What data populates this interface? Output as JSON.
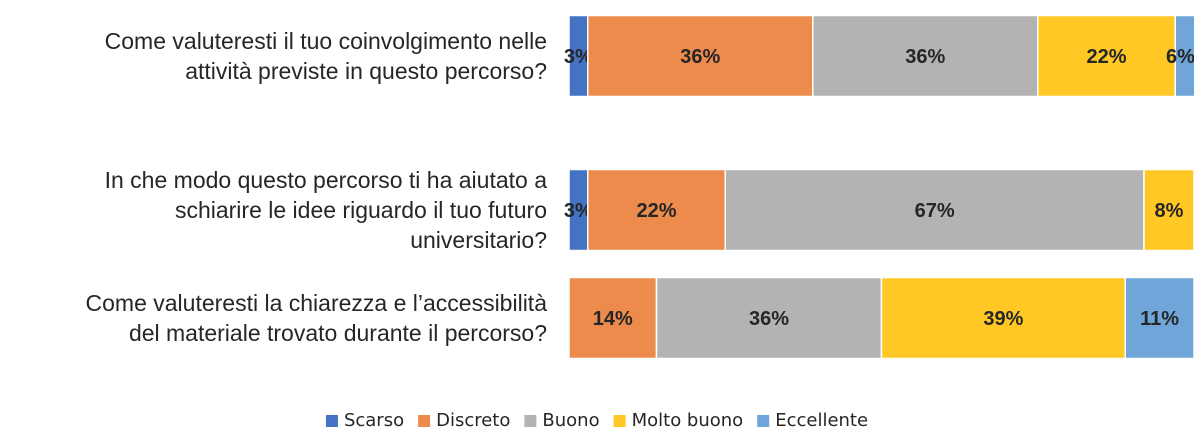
{
  "chart_data": {
    "type": "bar",
    "orientation": "horizontal",
    "stacked": true,
    "percent": true,
    "title": "",
    "xlabel": "",
    "ylabel": "",
    "xlim": [
      0,
      100
    ],
    "grid": false,
    "legend_position": "bottom",
    "categories": [
      "Come valuteresti il tuo coinvolgimento nelle attività previste in questo percorso?",
      "In che modo questo percorso ti ha aiutato a schiarire le idee riguardo il tuo futuro universitario?",
      "Come valuteresti la chiarezza e l’accessibilità del materiale trovato durante il percorso?"
    ],
    "category_lines": [
      [
        "Come valuteresti il tuo coinvolgimento nelle",
        "attività previste in questo percorso?"
      ],
      [
        "In che modo questo percorso ti ha aiutato a",
        "schiarire le idee riguardo il tuo futuro",
        "universitario?"
      ],
      [
        "Come valuteresti la chiarezza e l’accessibilità",
        "del materiale trovato durante il percorso?"
      ]
    ],
    "series": [
      {
        "name": "Scarso",
        "color": "#4472C4",
        "values": [
          3,
          3,
          0
        ],
        "labels": [
          "3%",
          "3%",
          ""
        ]
      },
      {
        "name": "Discreto",
        "color": "#ED8B4C",
        "values": [
          36,
          22,
          14
        ],
        "labels": [
          "36%",
          "22%",
          "14%"
        ]
      },
      {
        "name": "Buono",
        "color": "#B3B3B3",
        "values": [
          36,
          67,
          36
        ],
        "labels": [
          "36%",
          "67%",
          "36%"
        ]
      },
      {
        "name": "Molto buono",
        "color": "#FFC825",
        "values": [
          22,
          8,
          39
        ],
        "labels": [
          "22%",
          "8%",
          "39%"
        ]
      },
      {
        "name": "Eccellente",
        "color": "#6FA5D8",
        "values": [
          6,
          0,
          11
        ],
        "labels": [
          "6%",
          "",
          "11%"
        ]
      }
    ]
  }
}
